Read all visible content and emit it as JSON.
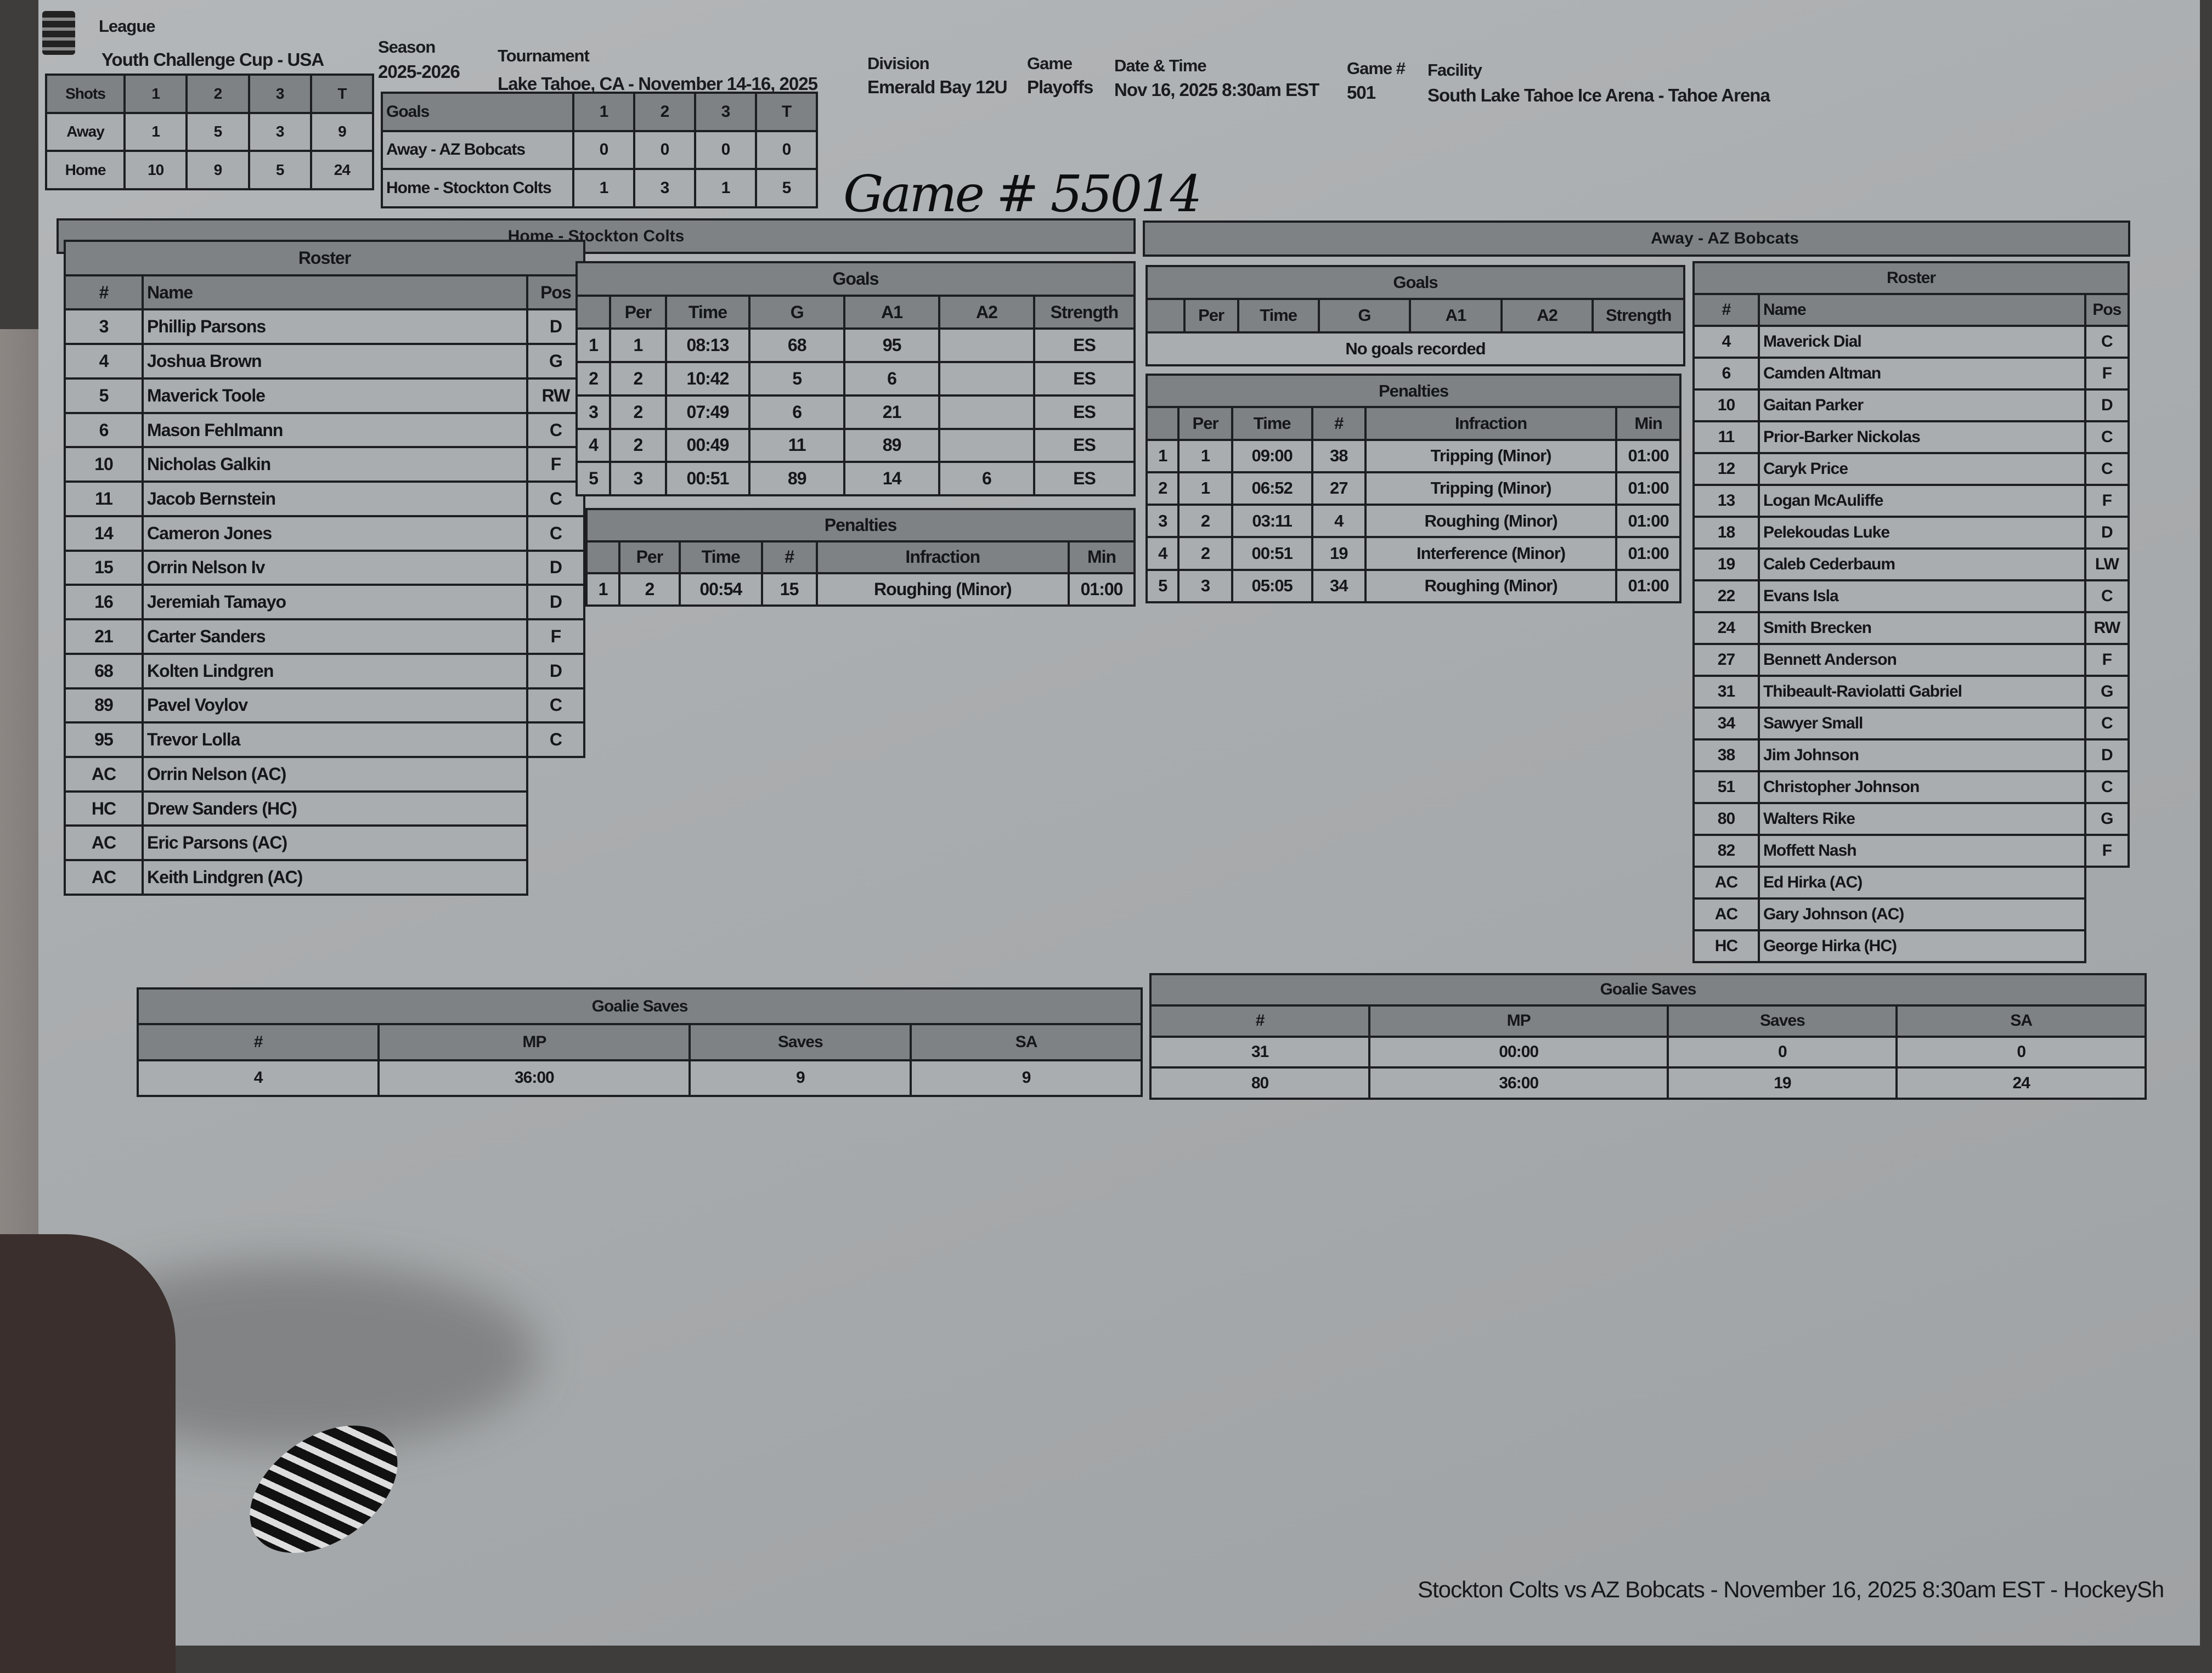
{
  "header": {
    "league_label": "League",
    "league": "Youth Challenge Cup - USA",
    "season_label": "Season",
    "season": "2025-2026",
    "tournament_label": "Tournament",
    "tournament": "Lake Tahoe, CA - November 14-16, 2025",
    "division_label": "Division",
    "division": "Emerald Bay 12U",
    "game_label": "Game",
    "game": "Playoffs",
    "datetime_label": "Date & Time",
    "datetime": "Nov 16, 2025 8:30am EST",
    "game_no_label": "Game #",
    "game_no": "501",
    "facility_label": "Facility",
    "facility": "South Lake Tahoe Ice Arena - Tahoe Arena"
  },
  "shots": {
    "columns": [
      "Shots",
      "1",
      "2",
      "3",
      "T"
    ],
    "rows": [
      [
        "Away",
        "1",
        "5",
        "3",
        "9"
      ],
      [
        "Home",
        "10",
        "9",
        "5",
        "24"
      ]
    ]
  },
  "goals_summary": {
    "columns": [
      "Goals",
      "1",
      "2",
      "3",
      "T"
    ],
    "rows": [
      [
        "Away - AZ Bobcats",
        "0",
        "0",
        "0",
        "0"
      ],
      [
        "Home - Stockton Colts",
        "1",
        "3",
        "1",
        "5"
      ]
    ]
  },
  "handwritten_note": "Game # 55014",
  "home": {
    "banner": "Home - Stockton Colts",
    "roster": {
      "title": "Roster",
      "columns": [
        "#",
        "Name",
        "Pos"
      ],
      "rows": [
        [
          "3",
          "Phillip Parsons",
          "D"
        ],
        [
          "4",
          "Joshua Brown",
          "G"
        ],
        [
          "5",
          "Maverick Toole",
          "RW"
        ],
        [
          "6",
          "Mason Fehlmann",
          "C"
        ],
        [
          "10",
          "Nicholas Galkin",
          "F"
        ],
        [
          "11",
          "Jacob Bernstein",
          "C"
        ],
        [
          "14",
          "Cameron Jones",
          "C"
        ],
        [
          "15",
          "Orrin Nelson Iv",
          "D"
        ],
        [
          "16",
          "Jeremiah Tamayo",
          "D"
        ],
        [
          "21",
          "Carter Sanders",
          "F"
        ],
        [
          "68",
          "Kolten Lindgren",
          "D"
        ],
        [
          "89",
          "Pavel Voylov",
          "C"
        ],
        [
          "95",
          "Trevor Lolla",
          "C"
        ],
        [
          "AC",
          "Orrin Nelson (AC)"
        ],
        [
          "HC",
          "Drew Sanders (HC)"
        ],
        [
          "AC",
          "Eric Parsons (AC)"
        ],
        [
          "AC",
          "Keith Lindgren (AC)"
        ]
      ]
    },
    "goals": {
      "title": "Goals",
      "columns": [
        "",
        "Per",
        "Time",
        "G",
        "A1",
        "A2",
        "Strength"
      ],
      "rows": [
        [
          "1",
          "1",
          "08:13",
          "68",
          "95",
          "",
          "ES"
        ],
        [
          "2",
          "2",
          "10:42",
          "5",
          "6",
          "",
          "ES"
        ],
        [
          "3",
          "2",
          "07:49",
          "6",
          "21",
          "",
          "ES"
        ],
        [
          "4",
          "2",
          "00:49",
          "11",
          "89",
          "",
          "ES"
        ],
        [
          "5",
          "3",
          "00:51",
          "89",
          "14",
          "6",
          "ES"
        ]
      ]
    },
    "penalties": {
      "title": "Penalties",
      "columns": [
        "",
        "Per",
        "Time",
        "#",
        "Infraction",
        "Min"
      ],
      "rows": [
        [
          "1",
          "2",
          "00:54",
          "15",
          "Roughing (Minor)",
          "01:00"
        ]
      ]
    },
    "goalie_saves": {
      "title": "Goalie Saves",
      "columns": [
        "#",
        "MP",
        "Saves",
        "SA"
      ],
      "rows": [
        [
          "4",
          "36:00",
          "9",
          "9"
        ]
      ]
    }
  },
  "away": {
    "banner": "Away - AZ Bobcats",
    "roster": {
      "title": "Roster",
      "columns": [
        "#",
        "Name",
        "Pos"
      ],
      "rows": [
        [
          "4",
          "Maverick Dial",
          "C"
        ],
        [
          "6",
          "Camden Altman",
          "F"
        ],
        [
          "10",
          "Gaitan Parker",
          "D"
        ],
        [
          "11",
          "Prior-Barker Nickolas",
          "C"
        ],
        [
          "12",
          "Caryk Price",
          "C"
        ],
        [
          "13",
          "Logan McAuliffe",
          "F"
        ],
        [
          "18",
          "Pelekoudas Luke",
          "D"
        ],
        [
          "19",
          "Caleb Cederbaum",
          "LW"
        ],
        [
          "22",
          "Evans Isla",
          "C"
        ],
        [
          "24",
          "Smith Brecken",
          "RW"
        ],
        [
          "27",
          "Bennett Anderson",
          "F"
        ],
        [
          "31",
          "Thibeault-Raviolatti Gabriel",
          "G"
        ],
        [
          "34",
          "Sawyer Small",
          "C"
        ],
        [
          "38",
          "Jim Johnson",
          "D"
        ],
        [
          "51",
          "Christopher Johnson",
          "C"
        ],
        [
          "80",
          "Walters Rike",
          "G"
        ],
        [
          "82",
          "Moffett Nash",
          "F"
        ],
        [
          "AC",
          "Ed Hirka (AC)"
        ],
        [
          "AC",
          "Gary Johnson (AC)"
        ],
        [
          "HC",
          "George Hirka (HC)"
        ]
      ]
    },
    "goals": {
      "title": "Goals",
      "columns": [
        "",
        "Per",
        "Time",
        "G",
        "A1",
        "A2",
        "Strength"
      ],
      "rows": [],
      "empty_message": "No goals recorded"
    },
    "penalties": {
      "title": "Penalties",
      "columns": [
        "",
        "Per",
        "Time",
        "#",
        "Infraction",
        "Min"
      ],
      "rows": [
        [
          "1",
          "1",
          "09:00",
          "38",
          "Tripping (Minor)",
          "01:00"
        ],
        [
          "2",
          "1",
          "06:52",
          "27",
          "Tripping (Minor)",
          "01:00"
        ],
        [
          "3",
          "2",
          "03:11",
          "4",
          "Roughing (Minor)",
          "01:00"
        ],
        [
          "4",
          "2",
          "00:51",
          "19",
          "Interference (Minor)",
          "01:00"
        ],
        [
          "5",
          "3",
          "05:05",
          "34",
          "Roughing (Minor)",
          "01:00"
        ]
      ]
    },
    "goalie_saves": {
      "title": "Goalie Saves",
      "columns": [
        "#",
        "MP",
        "Saves",
        "SA"
      ],
      "rows": [
        [
          "31",
          "00:00",
          "0",
          "0"
        ],
        [
          "80",
          "36:00",
          "19",
          "24"
        ]
      ]
    }
  },
  "footer": "Stockton Colts vs AZ Bobcats - November 16, 2025 8:30am EST - HockeySh"
}
